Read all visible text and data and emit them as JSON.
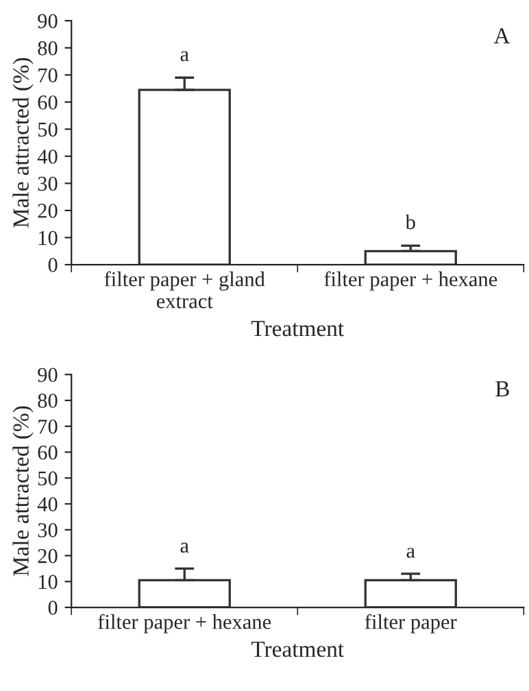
{
  "chart_data": [
    {
      "type": "bar",
      "categories": [
        "filter paper + gland\nextract",
        "filter paper + hexane"
      ],
      "values": [
        64.5,
        5
      ],
      "errors": [
        [
          64.5,
          69
        ],
        [
          5,
          7
        ]
      ],
      "color": "#ffffff",
      "xlabel": "Treatment",
      "ylabel": "Male attracted (%)",
      "ylim": [
        0,
        90
      ],
      "yticks": [
        0,
        10,
        20,
        30,
        40,
        50,
        60,
        70,
        80,
        90
      ],
      "grid": false,
      "annotations": [
        "A",
        "a",
        "b"
      ]
    },
    {
      "type": "bar",
      "categories": [
        "filter paper + hexane",
        "filter paper"
      ],
      "values": [
        10.5,
        10.5
      ],
      "errors": [
        [
          10.5,
          15
        ],
        [
          10.5,
          13
        ]
      ],
      "color": "#ffffff",
      "xlabel": "Treatment",
      "ylabel": "Male attracted (%)",
      "ylim": [
        0,
        90
      ],
      "yticks": [
        0,
        10,
        20,
        30,
        40,
        50,
        60,
        70,
        80,
        90
      ],
      "grid": false,
      "annotations": [
        "B",
        "a",
        "a"
      ]
    }
  ]
}
